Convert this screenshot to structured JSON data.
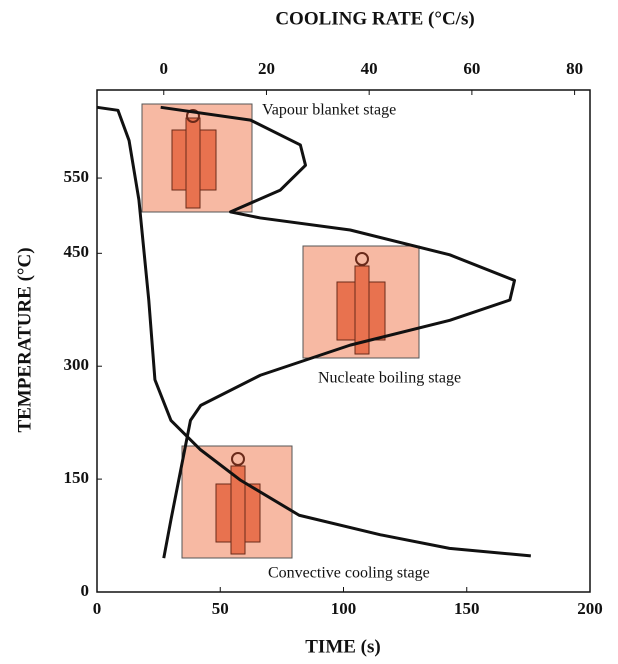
{
  "chart_data": {
    "type": "line",
    "title": "COOLING RATE (°C/s)",
    "x_label": "TIME (s)",
    "y_label": "TEMPERATURE (°C)",
    "xlim": [
      0,
      200
    ],
    "xticks": [
      0,
      50,
      100,
      150,
      200
    ],
    "x2lim": [
      -13,
      83
    ],
    "x2ticks": [
      0,
      20,
      40,
      60,
      80
    ],
    "ylim": [
      0,
      667
    ],
    "yticks": [
      0,
      150,
      300,
      450,
      550
    ],
    "series": [
      {
        "color": "#111111",
        "x": [
          0,
          8.5,
          13,
          17,
          21,
          23.5,
          30,
          42,
          58,
          82,
          115,
          143,
          176
        ],
        "values": [
          644,
          640,
          600,
          521,
          388,
          282,
          228,
          189,
          149,
          102,
          76,
          58,
          48
        ]
      },
      {
        "color": "#111111",
        "axis": "x2",
        "x": [
          -0.6,
          16.9,
          26.6,
          27.6,
          22.7,
          13,
          18.8,
          36.3,
          55.7,
          68.3,
          67.4,
          55.7,
          36.3,
          18.8,
          7.2,
          5.2,
          3.3,
          1.4,
          0
        ],
        "values": [
          644,
          627,
          594,
          567,
          534,
          505,
          497,
          481,
          448,
          414,
          388,
          361,
          328,
          288,
          248,
          228,
          162,
          96,
          45
        ]
      }
    ],
    "annotations": [
      "Vapour blanket stage",
      "Nucleate boiling stage",
      "Convective cooling stage"
    ]
  }
}
